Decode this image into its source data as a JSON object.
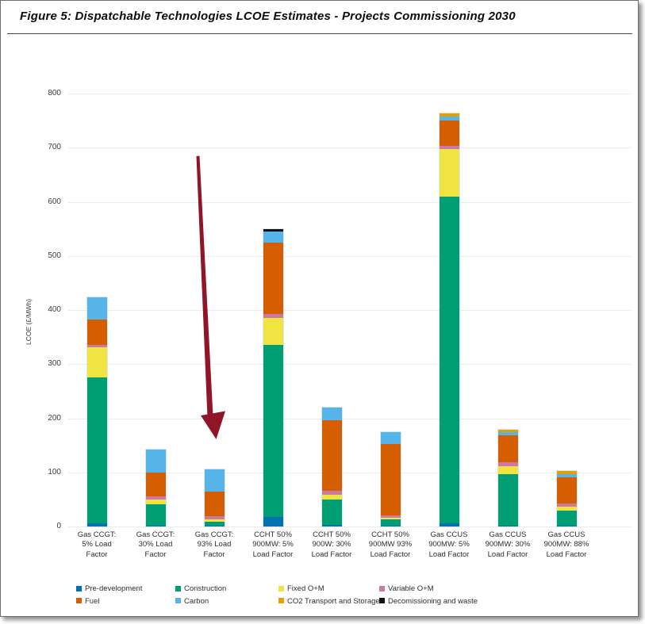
{
  "figure": {
    "title": "Figure 5: Dispatchable Technologies LCOE Estimates - Projects Commissioning 2030"
  },
  "annotation": {
    "type": "arrow",
    "color": "#911528",
    "points_to": "Gas CCGT: 93% Load Factor bar"
  },
  "chart_data": {
    "type": "bar",
    "subtype": "stacked-vertical",
    "title": "Figure 5: Dispatchable Technologies LCOE Estimates - Projects Commissioning 2030",
    "xlabel": "",
    "ylabel": "LCOE (£/MWh)",
    "ylim": [
      0,
      800
    ],
    "yticks": [
      0,
      100,
      200,
      300,
      400,
      500,
      600,
      700,
      800
    ],
    "grid": "horizontal-light",
    "legend_position": "bottom, 2 rows x 4 columns",
    "categories": [
      "Gas CCGT:\n5% Load\nFactor",
      "Gas CCGT:\n30% Load\nFactor",
      "Gas CCGT:\n93% Load\nFactor",
      "CCHT 50%\n900MW: 5%\nLoad Factor",
      "CCHT 50%\n900W: 30%\nLoad Factor",
      "CCHT 50%\n900MW 93%\nLoad Factor",
      "Gas CCUS\n900MW: 5%\nLoad Factor",
      "Gas CCUS\n900MW: 30%\nLoad Factor",
      "Gas CCUS\n900MW: 88%\nLoad Factor"
    ],
    "series": [
      {
        "name": "Pre-development",
        "color": "#0072B2",
        "values": [
          6,
          2,
          1,
          18,
          3,
          2,
          6,
          1,
          1
        ]
      },
      {
        "name": "Construction",
        "color": "#009E73",
        "values": [
          269,
          39,
          8,
          317,
          47,
          11,
          603,
          96,
          29
        ]
      },
      {
        "name": "Fixed O+M",
        "color": "#F0E442",
        "values": [
          56,
          9,
          4,
          51,
          9,
          3,
          88,
          14,
          6
        ]
      },
      {
        "name": "Variable O+M",
        "color": "#CC79A7",
        "values": [
          5,
          6,
          6,
          7,
          7,
          5,
          6,
          8,
          7
        ]
      },
      {
        "name": "Fuel",
        "color": "#D55E00",
        "values": [
          46,
          43,
          45,
          132,
          130,
          131,
          47,
          49,
          48
        ]
      },
      {
        "name": "Carbon",
        "color": "#56B4E9",
        "values": [
          41,
          43,
          41,
          20,
          24,
          23,
          7,
          6,
          6
        ]
      },
      {
        "name": "CO2 Transport and Storage",
        "color": "#E69F00",
        "values": [
          0,
          0,
          0,
          0,
          0,
          0,
          6,
          5,
          5
        ]
      },
      {
        "name": "Decomissioning and waste",
        "color": "#111111",
        "values": [
          0,
          0,
          0,
          4,
          0,
          0,
          0,
          0,
          0
        ]
      }
    ],
    "stack_totals": [
      423,
      142,
      105,
      549,
      220,
      175,
      763,
      179,
      102
    ]
  }
}
